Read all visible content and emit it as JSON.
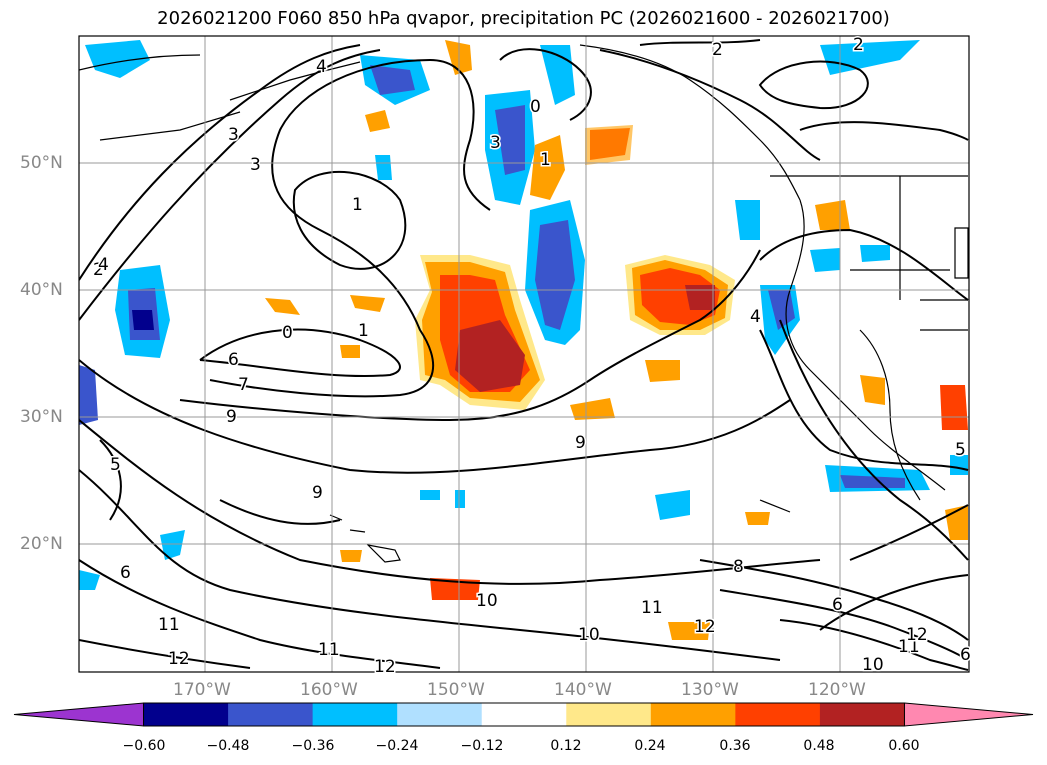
{
  "title": "2026021200 F060 850 hPa qvapor, precipitation PC (2026021600 - 2026021700)",
  "lat_ticks": [
    "50°N",
    "40°N",
    "30°N",
    "20°N"
  ],
  "lon_ticks": [
    "170°W",
    "160°W",
    "150°W",
    "140°W",
    "130°W",
    "120°W"
  ],
  "colorbar": {
    "labels": [
      "−0.60",
      "−0.48",
      "−0.36",
      "−0.24",
      "−0.12",
      "0.12",
      "0.24",
      "0.36",
      "0.48",
      "0.60"
    ],
    "colors": [
      "#9c34d0",
      "#02008d",
      "#3a55cc",
      "#00bfff",
      "#b0e0ff",
      "#ffffff",
      "#ffe88a",
      "#ffa000",
      "#ff4000",
      "#b22222",
      "#ff88b0"
    ]
  },
  "contour_labels": [
    "1",
    "1",
    "1",
    "2",
    "2",
    "2",
    "3",
    "3",
    "3",
    "4",
    "4",
    "4",
    "5",
    "5",
    "6",
    "6",
    "6",
    "6",
    "7",
    "8",
    "9",
    "9",
    "9",
    "10",
    "10",
    "10",
    "11",
    "11",
    "11",
    "11",
    "12",
    "12",
    "12",
    "12",
    "0",
    "0"
  ],
  "colors": {
    "coast": "#000000",
    "grid": "#999999",
    "contour": "#000000"
  }
}
